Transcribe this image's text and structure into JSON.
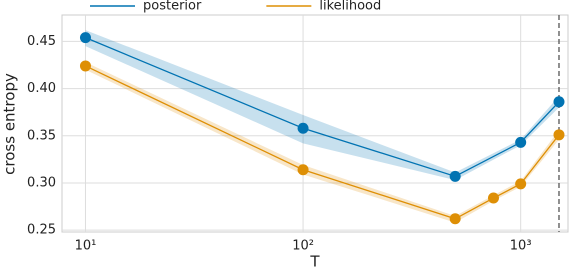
{
  "chart_data": {
    "type": "line",
    "x_label": "T",
    "y_label": "cross entropy",
    "xscale": "log",
    "xlim": [
      7.8,
      1650
    ],
    "ylim": [
      0.248,
      0.478
    ],
    "xticks": [
      {
        "value": 10,
        "label": "10¹"
      },
      {
        "value": 100,
        "label": "10²"
      },
      {
        "value": 1000,
        "label": "10³"
      }
    ],
    "yticks": [
      0.25,
      {
        "value": 0.3,
        "label": "0.30"
      },
      0.35,
      {
        "value": 0.4,
        "label": "0.40"
      },
      0.45
    ],
    "grid": true,
    "legend": "top",
    "vline": 1500,
    "series": [
      {
        "name": "posterior",
        "color": "#0173b2",
        "x": [
          10,
          100,
          500,
          1000,
          1500
        ],
        "values": [
          0.454,
          0.358,
          0.307,
          0.343,
          0.386
        ],
        "lower": [
          0.445,
          0.342,
          0.303,
          0.34,
          0.38
        ],
        "upper": [
          0.462,
          0.372,
          0.311,
          0.346,
          0.392
        ]
      },
      {
        "name": "likelihood",
        "color": "#de8f05",
        "x": [
          10,
          100,
          500,
          750,
          1000,
          1500
        ],
        "values": [
          0.424,
          0.314,
          0.262,
          0.284,
          0.299,
          0.351
        ],
        "lower": [
          0.42,
          0.309,
          0.258,
          0.281,
          0.296,
          0.346
        ],
        "upper": [
          0.428,
          0.319,
          0.265,
          0.287,
          0.302,
          0.356
        ]
      }
    ]
  }
}
